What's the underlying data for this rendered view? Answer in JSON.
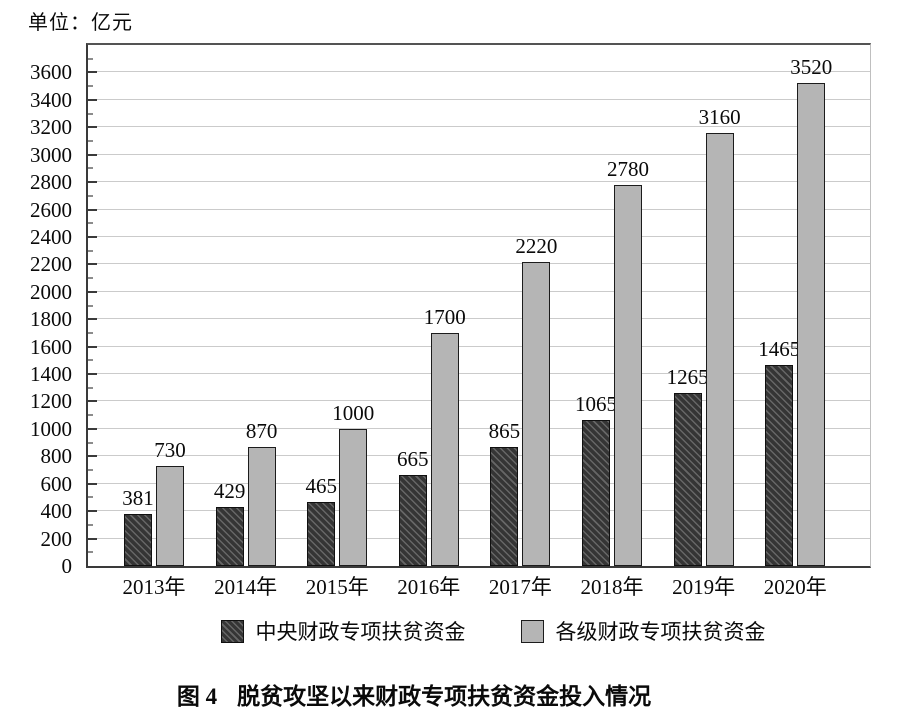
{
  "unit_label": "单位：亿元",
  "caption": {
    "label": "图 4",
    "text": "脱贫攻坚以来财政专项扶贫资金投入情况"
  },
  "chart_data": {
    "type": "bar",
    "title": "图 4 脱贫攻坚以来财政专项扶贫资金投入情况",
    "unit": "亿元",
    "categories": [
      "2013年",
      "2014年",
      "2015年",
      "2016年",
      "2017年",
      "2018年",
      "2019年",
      "2020年"
    ],
    "series": [
      {
        "name": "中央财政专项扶贫资金",
        "pattern": "diagonal-hatch",
        "values": [
          381,
          429,
          465,
          665,
          865,
          1065,
          1265,
          1465
        ]
      },
      {
        "name": "各级财政专项扶贫资金",
        "pattern": "solid",
        "values": [
          730,
          870,
          1000,
          1700,
          2220,
          2780,
          3160,
          3520
        ]
      }
    ],
    "ylim": [
      0,
      3800
    ],
    "ytick_step": 200,
    "ytick_labeled_max": 3600,
    "minor_tick_step": 100,
    "grid": true,
    "legend_position": "bottom",
    "colors": {
      "dark_bar": "#373737",
      "dark_bar_hatch": "#666666",
      "light_bar": "#b5b5b5",
      "gridline": "#cbcbcb",
      "axis": "#3a3a3a",
      "text": "#0a0a0a"
    }
  }
}
